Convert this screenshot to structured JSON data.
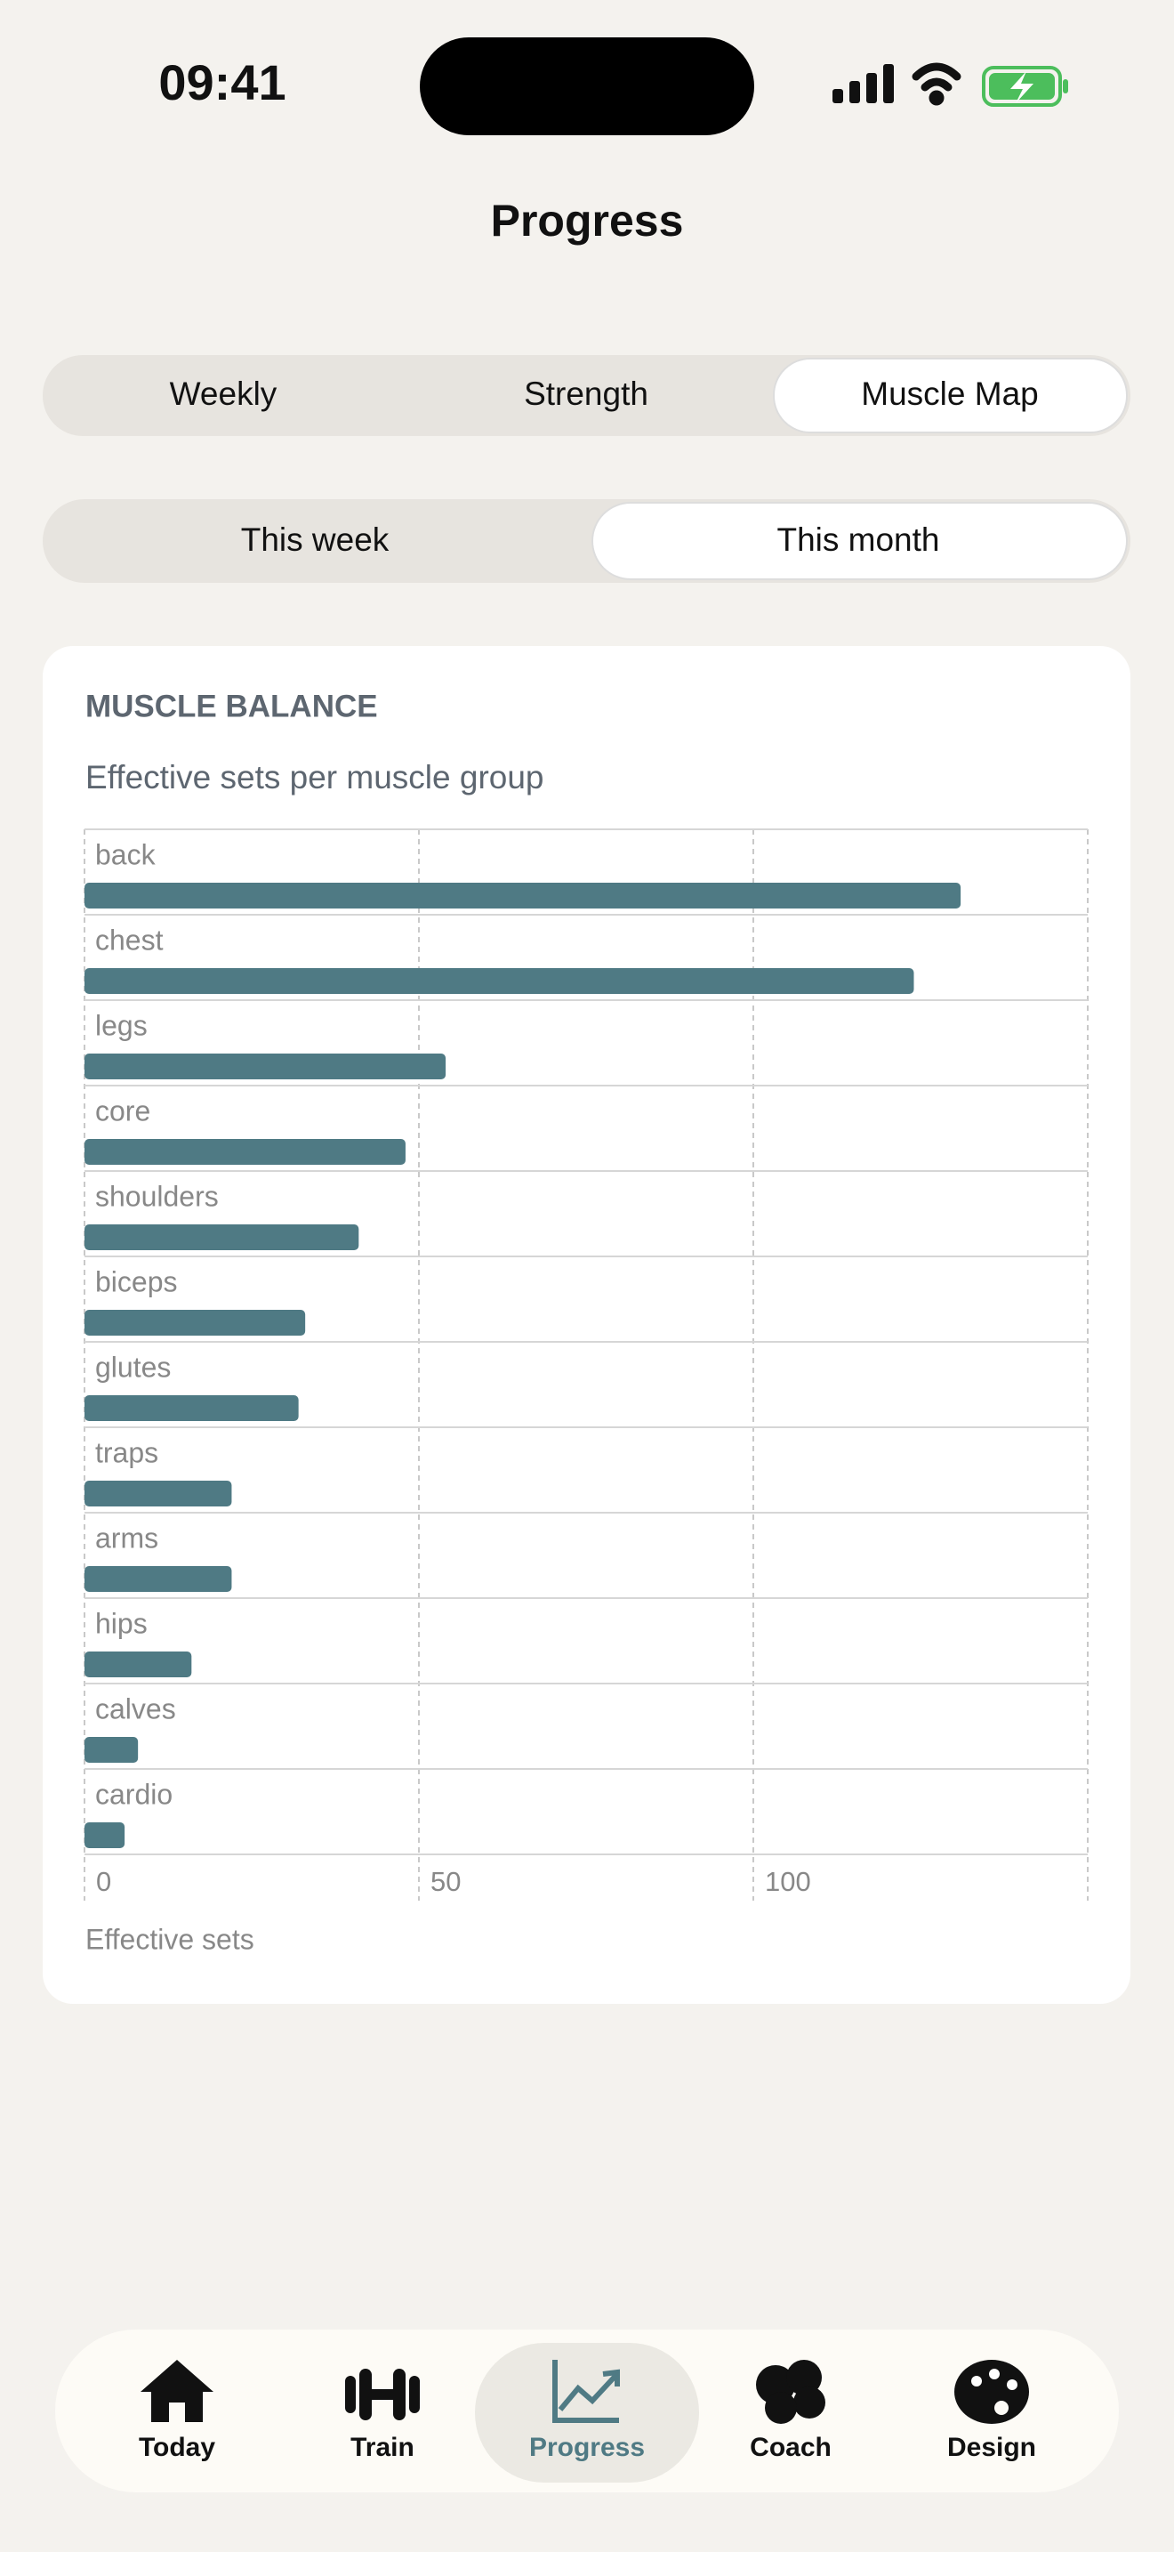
{
  "status": {
    "time": "09:41"
  },
  "header": {
    "title": "Progress"
  },
  "view_tabs": [
    "Weekly",
    "Strength",
    "Muscle Map"
  ],
  "range_tabs": [
    "This week",
    "This month"
  ],
  "chart_data": {
    "type": "hbar",
    "title": "MUSCLE BALANCE",
    "subtitle": "Effective sets per muscle group",
    "categories": [
      "back",
      "chest",
      "legs",
      "core",
      "shoulders",
      "biceps",
      "glutes",
      "traps",
      "arms",
      "hips",
      "calves",
      "cardio"
    ],
    "values": [
      131,
      124,
      54,
      48,
      41,
      33,
      32,
      22,
      22,
      16,
      8,
      6
    ],
    "color": "#4f7a84",
    "xlim": [
      0,
      150
    ],
    "xticks": [
      0,
      50,
      100
    ],
    "x_label": "Effective sets",
    "grid": true
  },
  "nav": [
    "Today",
    "Train",
    "Progress",
    "Coach",
    "Design"
  ]
}
